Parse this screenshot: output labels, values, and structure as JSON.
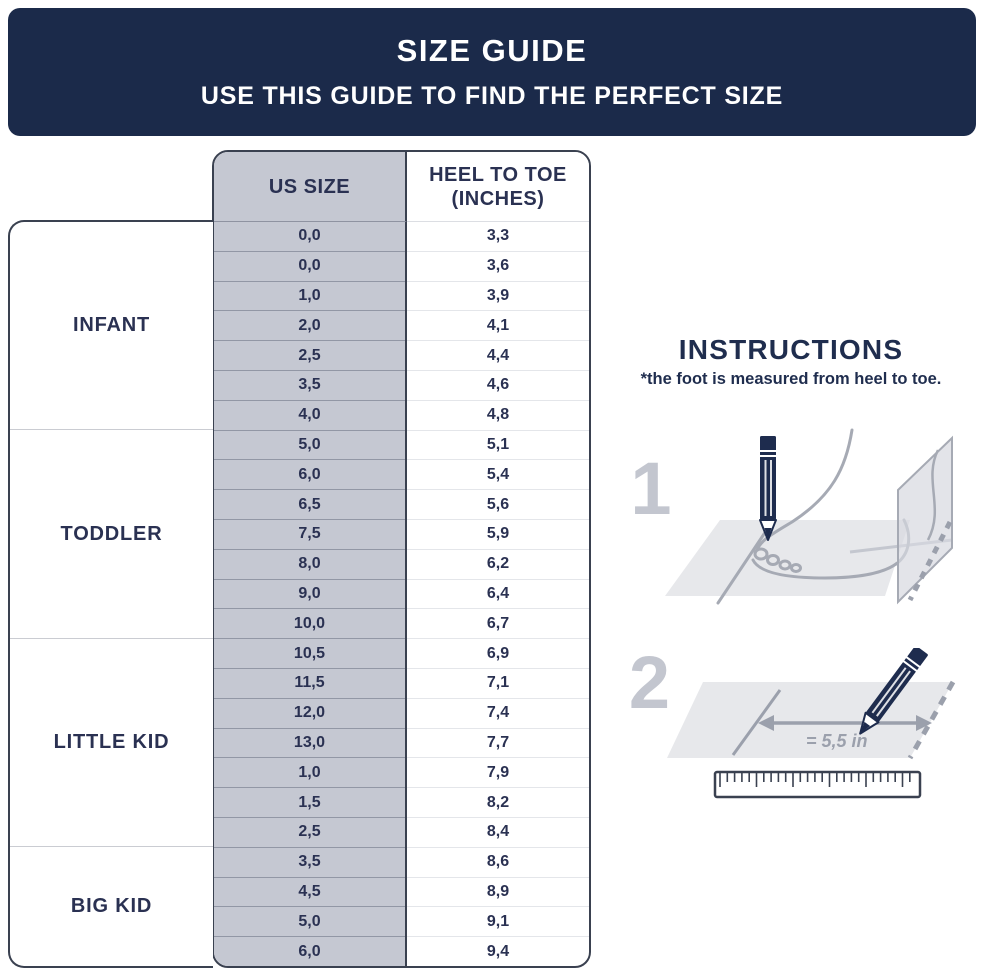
{
  "banner": {
    "title": "SIZE GUIDE",
    "subtitle": "USE THIS GUIDE TO FIND THE PERFECT SIZE"
  },
  "table": {
    "col_us_header": "US SIZE",
    "col_heel_header_line1": "HEEL TO TOE",
    "col_heel_header_line2": "(INCHES)",
    "groups": [
      {
        "label": "INFANT",
        "rows": [
          [
            "0,0",
            "3,3"
          ],
          [
            "0,0",
            "3,6"
          ],
          [
            "1,0",
            "3,9"
          ],
          [
            "2,0",
            "4,1"
          ],
          [
            "2,5",
            "4,4"
          ],
          [
            "3,5",
            "4,6"
          ],
          [
            "4,0",
            "4,8"
          ]
        ]
      },
      {
        "label": "TODDLER",
        "rows": [
          [
            "5,0",
            "5,1"
          ],
          [
            "6,0",
            "5,4"
          ],
          [
            "6,5",
            "5,6"
          ],
          [
            "7,5",
            "5,9"
          ],
          [
            "8,0",
            "6,2"
          ],
          [
            "9,0",
            "6,4"
          ],
          [
            "10,0",
            "6,7"
          ]
        ]
      },
      {
        "label": "LITTLE KID",
        "rows": [
          [
            "10,5",
            "6,9"
          ],
          [
            "11,5",
            "7,1"
          ],
          [
            "12,0",
            "7,4"
          ],
          [
            "13,0",
            "7,7"
          ],
          [
            "1,0",
            "7,9"
          ],
          [
            "1,5",
            "8,2"
          ],
          [
            "2,5",
            "8,4"
          ]
        ]
      },
      {
        "label": "BIG KID",
        "rows": [
          [
            "3,5",
            "8,6"
          ],
          [
            "4,5",
            "8,9"
          ],
          [
            "5,0",
            "9,1"
          ],
          [
            "6,0",
            "9,4"
          ]
        ]
      }
    ]
  },
  "instructions": {
    "title": "INSTRUCTIONS",
    "note": "*the foot is measured from heel to toe.",
    "step1_number": "1",
    "step2_number": "2",
    "measurement_label": "= 5,5 in"
  },
  "colors": {
    "banner_navy": "#1b2a4a",
    "table_text_navy": "#2a3152",
    "gray_column": "#c5c8d2",
    "table_border": "#3a4150",
    "illustration_line_gray": "#a6aab4",
    "illustration_fill_gray": "#e7e8eb",
    "step_number_gray": "#c3c6cf",
    "pencil_navy": "#1e2c4e"
  }
}
